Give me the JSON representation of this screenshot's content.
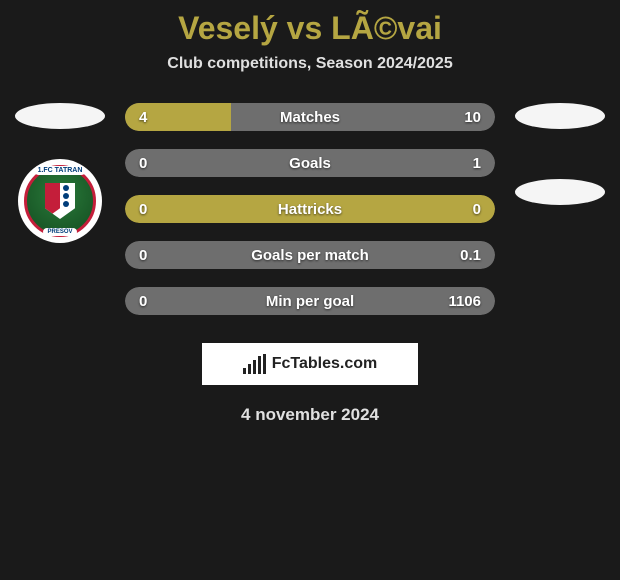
{
  "header": {
    "title": "Veselý vs LÃ©vai",
    "subtitle": "Club competitions, Season 2024/2025"
  },
  "colors": {
    "left": "#b5a642",
    "right": "#6e6e6e",
    "neutral": "#6e6e6e",
    "title": "#b5a642",
    "bg": "#1a1a1a",
    "text_light": "#e0e0e0"
  },
  "left_team": {
    "badge_top": "1.FC TATRAN",
    "badge_bottom": "PRESOV"
  },
  "stats": [
    {
      "label": "Matches",
      "left_val": "4",
      "right_val": "10",
      "left_pct": 28.6,
      "right_pct": 71.4,
      "mode": "split"
    },
    {
      "label": "Goals",
      "left_val": "0",
      "right_val": "1",
      "left_pct": 0,
      "right_pct": 100,
      "mode": "split"
    },
    {
      "label": "Hattricks",
      "left_val": "0",
      "right_val": "0",
      "left_pct": 0,
      "right_pct": 0,
      "mode": "neutral"
    },
    {
      "label": "Goals per match",
      "left_val": "0",
      "right_val": "0.1",
      "left_pct": 0,
      "right_pct": 100,
      "mode": "split"
    },
    {
      "label": "Min per goal",
      "left_val": "0",
      "right_val": "1106",
      "left_pct": 0,
      "right_pct": 100,
      "mode": "split"
    }
  ],
  "footer": {
    "site": "FcTables.com",
    "date": "4 november 2024"
  }
}
